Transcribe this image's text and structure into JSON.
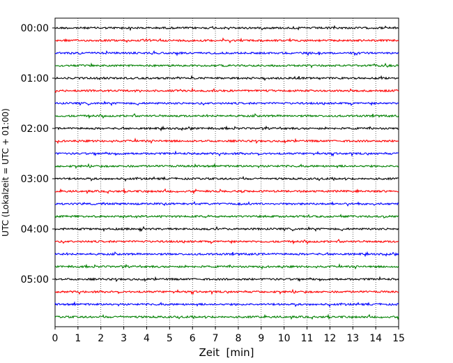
{
  "chart_data": {
    "type": "line",
    "title": "",
    "xlabel": "Zeit  [min]",
    "ylabel": "UTC (Lokalzeit = UTC + 01:00)",
    "xlim": [
      0,
      15
    ],
    "x_ticks": [
      "0",
      "1",
      "2",
      "3",
      "4",
      "5",
      "6",
      "7",
      "8",
      "9",
      "10",
      "11",
      "12",
      "13",
      "14",
      "15"
    ],
    "y_ticks": [
      "00:00",
      "01:00",
      "02:00",
      "03:00",
      "04:00",
      "05:00"
    ],
    "grid": "vertical dotted",
    "trace_interval_min": 15,
    "trace_colors": [
      "#000000",
      "#ff0000",
      "#0000ff",
      "#008000"
    ],
    "series": [
      {
        "start": "00:00",
        "color": "#000000"
      },
      {
        "start": "00:15",
        "color": "#ff0000"
      },
      {
        "start": "00:30",
        "color": "#0000ff"
      },
      {
        "start": "00:45",
        "color": "#008000"
      },
      {
        "start": "01:00",
        "color": "#000000"
      },
      {
        "start": "01:15",
        "color": "#ff0000"
      },
      {
        "start": "01:30",
        "color": "#0000ff"
      },
      {
        "start": "01:45",
        "color": "#008000"
      },
      {
        "start": "02:00",
        "color": "#000000"
      },
      {
        "start": "02:15",
        "color": "#ff0000"
      },
      {
        "start": "02:30",
        "color": "#0000ff"
      },
      {
        "start": "02:45",
        "color": "#008000"
      },
      {
        "start": "03:00",
        "color": "#000000"
      },
      {
        "start": "03:15",
        "color": "#ff0000"
      },
      {
        "start": "03:30",
        "color": "#0000ff"
      },
      {
        "start": "03:45",
        "color": "#008000"
      },
      {
        "start": "04:00",
        "color": "#000000"
      },
      {
        "start": "04:15",
        "color": "#ff0000"
      },
      {
        "start": "04:30",
        "color": "#0000ff"
      },
      {
        "start": "04:45",
        "color": "#008000"
      },
      {
        "start": "05:00",
        "color": "#000000"
      },
      {
        "start": "05:15",
        "color": "#ff0000"
      },
      {
        "start": "05:30",
        "color": "#0000ff"
      },
      {
        "start": "05:45",
        "color": "#008000"
      }
    ]
  }
}
